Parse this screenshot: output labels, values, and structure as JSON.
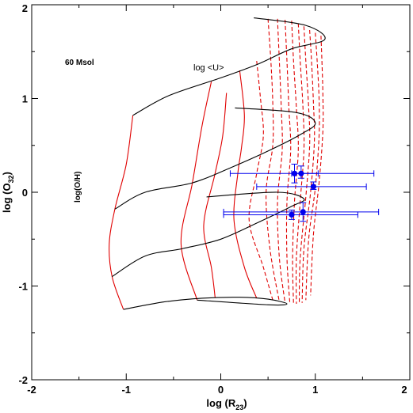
{
  "chart_data": {
    "type": "line",
    "title": "",
    "xlabel": "log (R",
    "xlabel_sub": "23",
    "xlabel_close": ")",
    "ylabel": "log (O",
    "ylabel_sub": "32",
    "ylabel_close": ")",
    "xlim": [
      -2,
      2
    ],
    "ylim": [
      -2,
      2
    ],
    "xticks": [
      -2,
      -1,
      0,
      1,
      2
    ],
    "yticks": [
      -2,
      -1,
      0,
      1,
      2
    ],
    "xtick_labels": [
      "-2",
      "-1",
      "0",
      "1",
      "2"
    ],
    "ytick_labels": [
      "-2",
      "-1",
      "0",
      "1",
      "2"
    ],
    "grid": false,
    "annotations": {
      "model": "60 Msol",
      "ionization": "log <U>",
      "metallicity": "log(O/H)"
    },
    "colors": {
      "metallicity_tracks": "#000000",
      "ionization_tracks": "#e00000",
      "observations": "#0000ee"
    },
    "metallicity_tracks": [
      {
        "points": [
          [
            -0.93,
            0.82
          ],
          [
            -0.55,
            1.03
          ],
          [
            0.0,
            1.22
          ],
          [
            0.4,
            1.37
          ],
          [
            0.75,
            1.53
          ],
          [
            1.1,
            1.63
          ],
          [
            0.9,
            1.78
          ],
          [
            0.35,
            1.86
          ]
        ]
      },
      {
        "points": [
          [
            -1.12,
            -0.18
          ],
          [
            -0.8,
            0.0
          ],
          [
            -0.3,
            0.1
          ],
          [
            0.1,
            0.26
          ],
          [
            0.5,
            0.44
          ],
          [
            0.85,
            0.62
          ],
          [
            1.0,
            0.74
          ],
          [
            0.8,
            0.85
          ],
          [
            0.15,
            0.9
          ]
        ]
      },
      {
        "points": [
          [
            -1.15,
            -0.9
          ],
          [
            -0.8,
            -0.68
          ],
          [
            -0.4,
            -0.6
          ],
          [
            0.0,
            -0.5
          ],
          [
            0.4,
            -0.32
          ],
          [
            0.75,
            -0.15
          ],
          [
            0.88,
            -0.07
          ],
          [
            0.6,
            0.0
          ],
          [
            -0.15,
            -0.05
          ]
        ]
      },
      {
        "points": [
          [
            -1.03,
            -1.25
          ],
          [
            -0.6,
            -1.17
          ],
          [
            -0.2,
            -1.13
          ],
          [
            0.2,
            -1.12
          ],
          [
            0.5,
            -1.14
          ],
          [
            0.7,
            -1.19
          ],
          [
            0.5,
            -1.2
          ],
          [
            -0.25,
            -1.15
          ]
        ]
      }
    ],
    "ionization_tracks": [
      {
        "dashed": false,
        "points": [
          [
            -0.93,
            0.82
          ],
          [
            -1.0,
            0.3
          ],
          [
            -1.12,
            -0.18
          ],
          [
            -1.18,
            -0.55
          ],
          [
            -1.15,
            -0.9
          ],
          [
            -1.03,
            -1.25
          ]
        ]
      },
      {
        "dashed": false,
        "points": [
          [
            -0.1,
            1.18
          ],
          [
            -0.2,
            0.7
          ],
          [
            -0.3,
            0.1
          ],
          [
            -0.42,
            -0.55
          ],
          [
            -0.25,
            -1.15
          ]
        ]
      },
      {
        "dashed": false,
        "points": [
          [
            0.06,
            1.06
          ],
          [
            0.02,
            0.6
          ],
          [
            -0.06,
            0.2
          ],
          [
            -0.18,
            -0.35
          ],
          [
            -0.1,
            -0.8
          ],
          [
            -0.06,
            -1.12
          ]
        ]
      },
      {
        "dashed": false,
        "points": [
          [
            0.2,
            1.3
          ],
          [
            0.25,
            0.82
          ],
          [
            0.22,
            0.48
          ],
          [
            0.18,
            0.2
          ],
          [
            0.14,
            -0.3
          ],
          [
            0.25,
            -0.8
          ],
          [
            0.38,
            -1.13
          ]
        ]
      },
      {
        "dashed": true,
        "points": [
          [
            0.38,
            1.4
          ],
          [
            0.42,
            1.0
          ],
          [
            0.45,
            0.6
          ],
          [
            0.38,
            0.2
          ],
          [
            0.3,
            -0.3
          ],
          [
            0.45,
            -0.8
          ],
          [
            0.55,
            -1.15
          ]
        ]
      },
      {
        "dashed": true,
        "points": [
          [
            0.5,
            1.85
          ],
          [
            0.53,
            1.4
          ],
          [
            0.55,
            0.95
          ],
          [
            0.55,
            0.5
          ],
          [
            0.48,
            0.0
          ],
          [
            0.52,
            -0.6
          ],
          [
            0.62,
            -1.17
          ]
        ]
      },
      {
        "dashed": true,
        "points": [
          [
            0.6,
            1.85
          ],
          [
            0.62,
            1.4
          ],
          [
            0.64,
            0.9
          ],
          [
            0.65,
            0.45
          ],
          [
            0.6,
            -0.1
          ],
          [
            0.62,
            -0.7
          ],
          [
            0.68,
            -1.18
          ]
        ]
      },
      {
        "dashed": true,
        "points": [
          [
            0.68,
            1.84
          ],
          [
            0.7,
            1.4
          ],
          [
            0.72,
            0.9
          ],
          [
            0.74,
            0.45
          ],
          [
            0.7,
            -0.1
          ],
          [
            0.7,
            -0.7
          ],
          [
            0.73,
            -1.18
          ]
        ]
      },
      {
        "dashed": true,
        "points": [
          [
            0.75,
            1.83
          ],
          [
            0.77,
            1.4
          ],
          [
            0.8,
            0.9
          ],
          [
            0.82,
            0.45
          ],
          [
            0.78,
            -0.1
          ],
          [
            0.76,
            -0.7
          ],
          [
            0.77,
            -1.19
          ]
        ]
      },
      {
        "dashed": true,
        "points": [
          [
            0.82,
            1.8
          ],
          [
            0.84,
            1.4
          ],
          [
            0.87,
            0.9
          ],
          [
            0.88,
            0.45
          ],
          [
            0.84,
            -0.1
          ],
          [
            0.8,
            -0.7
          ],
          [
            0.8,
            -1.19
          ]
        ]
      },
      {
        "dashed": true,
        "points": [
          [
            0.88,
            1.77
          ],
          [
            0.9,
            1.4
          ],
          [
            0.93,
            0.9
          ],
          [
            0.94,
            0.5
          ],
          [
            0.9,
            -0.05
          ],
          [
            0.84,
            -0.7
          ],
          [
            0.83,
            -1.19
          ]
        ]
      },
      {
        "dashed": true,
        "points": [
          [
            0.94,
            1.73
          ],
          [
            0.96,
            1.4
          ],
          [
            0.98,
            0.95
          ],
          [
            0.99,
            0.55
          ],
          [
            0.95,
            0.0
          ],
          [
            0.88,
            -0.6
          ],
          [
            0.86,
            -1.18
          ]
        ]
      },
      {
        "dashed": true,
        "points": [
          [
            1.0,
            1.7
          ],
          [
            1.02,
            1.4
          ],
          [
            1.04,
            1.0
          ],
          [
            1.04,
            0.6
          ],
          [
            1.0,
            0.05
          ],
          [
            0.93,
            -0.5
          ],
          [
            0.9,
            -1.15
          ]
        ]
      },
      {
        "dashed": true,
        "points": [
          [
            1.06,
            1.67
          ],
          [
            1.07,
            1.4
          ],
          [
            1.08,
            1.05
          ],
          [
            1.08,
            0.65
          ],
          [
            1.04,
            0.1
          ],
          [
            0.98,
            -0.45
          ],
          [
            0.95,
            -1.1
          ]
        ]
      }
    ],
    "observations": [
      {
        "x": 0.78,
        "y": 0.2,
        "xerr": [
          0.68,
          0.25
        ],
        "yerr": [
          0.1,
          0.1
        ]
      },
      {
        "x": 0.85,
        "y": 0.2,
        "xerr": [
          0.1,
          0.77
        ],
        "yerr": [
          0.05,
          0.08
        ]
      },
      {
        "x": 0.98,
        "y": 0.06,
        "xerr": [
          0.6,
          0.56
        ],
        "yerr": [
          0.03,
          0.05
        ]
      },
      {
        "x": 0.75,
        "y": -0.24,
        "xerr": [
          0.72,
          0.7
        ],
        "yerr": [
          0.05,
          0.05
        ]
      },
      {
        "x": 0.87,
        "y": -0.21,
        "xerr": [
          0.84,
          0.8
        ],
        "yerr": [
          0.1,
          0.1
        ]
      }
    ]
  }
}
